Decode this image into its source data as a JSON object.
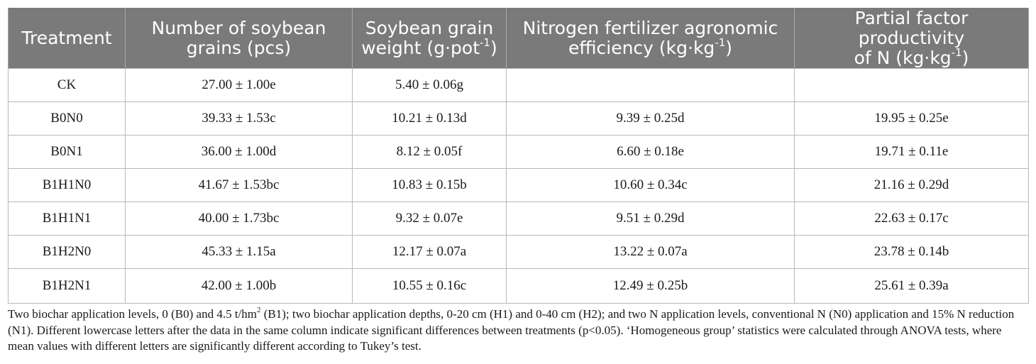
{
  "table": {
    "headers": [
      {
        "line1": "Treatment",
        "line2": "",
        "unit_sup": "",
        "unit_tail": ""
      },
      {
        "line1": "Number of soybean",
        "line2": "grains (pcs)",
        "unit_sup": "",
        "unit_tail": ""
      },
      {
        "line1": "Soybean grain",
        "line2": "weight (g·pot",
        "unit_sup": "-1",
        "unit_tail": ")"
      },
      {
        "line1": "Nitrogen fertilizer agronomic",
        "line2": "efficiency (kg·kg",
        "unit_sup": "-1",
        "unit_tail": ")"
      },
      {
        "line1": "Partial factor productivity",
        "line2": "of N (kg·kg",
        "unit_sup": "-1",
        "unit_tail": ")"
      }
    ],
    "rows": [
      [
        "CK",
        "27.00 ± 1.00e",
        "5.40 ± 0.06g",
        "",
        ""
      ],
      [
        "B0N0",
        "39.33 ± 1.53c",
        "10.21 ± 0.13d",
        "9.39 ± 0.25d",
        "19.95 ± 0.25e"
      ],
      [
        "B0N1",
        "36.00 ± 1.00d",
        "8.12 ± 0.05f",
        "6.60 ± 0.18e",
        "19.71 ± 0.11e"
      ],
      [
        "B1H1N0",
        "41.67 ± 1.53bc",
        "10.83 ± 0.15b",
        "10.60 ± 0.34c",
        "21.16 ± 0.29d"
      ],
      [
        "B1H1N1",
        "40.00 ± 1.73bc",
        "9.32 ± 0.07e",
        "9.51 ± 0.29d",
        "22.63 ± 0.17c"
      ],
      [
        "B1H2N0",
        "45.33 ± 1.15a",
        "12.17 ± 0.07a",
        "13.22 ± 0.07a",
        "23.78 ± 0.14b"
      ],
      [
        "B1H2N1",
        "42.00 ± 1.00b",
        "10.55 ± 0.16c",
        "12.49 ± 0.25b",
        "25.61 ± 0.39a"
      ]
    ]
  },
  "footnote": {
    "part1": "Two biochar application levels, 0 (B0) and 4.5 t/hm",
    "sup": "2",
    "part2": " (B1); two biochar application depths, 0-20 cm (H1) and 0-40 cm (H2); and two N application levels, conventional N (N0) application and 15% N reduction (N1). Different lowercase letters after the data in the same column indicate significant differences between treatments (p<0.05). ‘Homogeneous group’ statistics were calculated through ANOVA tests, where mean values with different letters are significantly different according to Tukey’s test."
  }
}
